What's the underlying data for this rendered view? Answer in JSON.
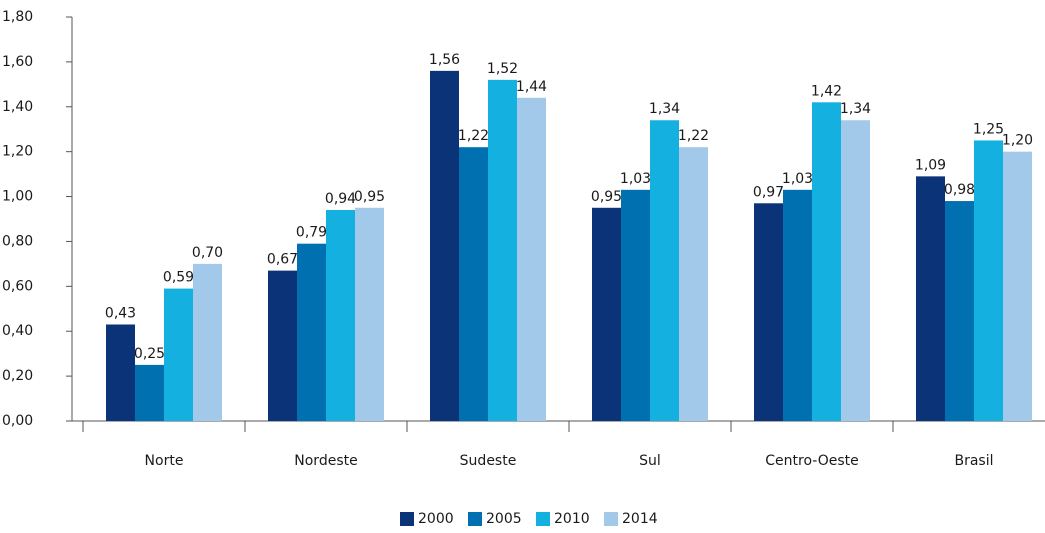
{
  "chart_data": {
    "type": "bar",
    "categories": [
      "Norte",
      "Nordeste",
      "Sudeste",
      "Sul",
      "Centro-Oeste",
      "Brasil"
    ],
    "series": [
      {
        "name": "2000",
        "color": "#0b3478",
        "values": [
          0.43,
          0.67,
          1.56,
          0.95,
          0.97,
          1.09
        ],
        "value_labels": [
          "0,43",
          "0,67",
          "1,56",
          "0,95",
          "0,97",
          "1,09"
        ]
      },
      {
        "name": "2005",
        "color": "#0070b0",
        "values": [
          0.25,
          0.79,
          1.22,
          1.03,
          1.03,
          0.98
        ],
        "value_labels": [
          "0,25",
          "0,79",
          "1,22",
          "1,03",
          "1,03",
          "0,98"
        ]
      },
      {
        "name": "2010",
        "color": "#14b1e0",
        "values": [
          0.59,
          0.94,
          1.52,
          1.34,
          1.42,
          1.25
        ],
        "value_labels": [
          "0,59",
          "0,94",
          "1,52",
          "1,34",
          "1,42",
          "1,25"
        ]
      },
      {
        "name": "2014",
        "color": "#a3c9ea",
        "values": [
          0.7,
          0.95,
          1.44,
          1.22,
          1.34,
          1.2
        ],
        "value_labels": [
          "0,70",
          "0,95",
          "1,44",
          "1,22",
          "1,34",
          "1,20"
        ]
      }
    ],
    "ylim": [
      0,
      1.8
    ],
    "yticks": [
      {
        "value": 0,
        "label": "0,00"
      },
      {
        "value": 0.2,
        "label": "0,20"
      },
      {
        "value": 0.4,
        "label": "0,40"
      },
      {
        "value": 0.6,
        "label": "0,60"
      },
      {
        "value": 0.8,
        "label": "0,80"
      },
      {
        "value": 1.0,
        "label": "1,00"
      },
      {
        "value": 1.2,
        "label": "1,20"
      },
      {
        "value": 1.4,
        "label": "1,40"
      },
      {
        "value": 1.6,
        "label": "1,60"
      },
      {
        "value": 1.8,
        "label": "1,80"
      }
    ],
    "legend": "bottom"
  }
}
